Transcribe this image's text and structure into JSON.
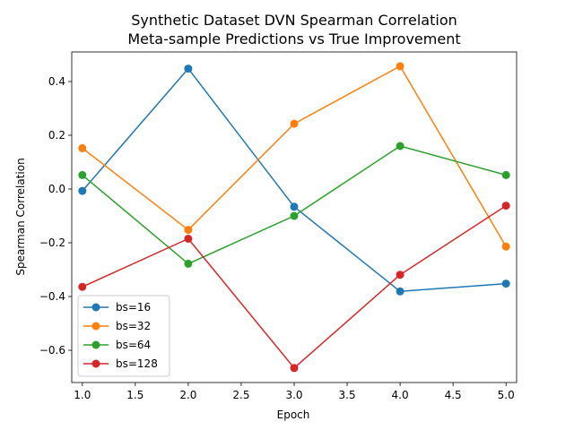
{
  "chart_data": {
    "type": "line",
    "title": "Synthetic Dataset DVN Spearman Correlation",
    "subtitle": "Meta-sample Predictions vs True Improvement",
    "xlabel": "Epoch",
    "ylabel": "Spearman Correlation",
    "xlim": [
      0.9,
      5.1
    ],
    "ylim": [
      -0.72,
      0.51
    ],
    "xticks": [
      1.0,
      1.5,
      2.0,
      2.5,
      3.0,
      3.5,
      4.0,
      4.5,
      5.0
    ],
    "xtick_labels": [
      "1.0",
      "1.5",
      "2.0",
      "2.5",
      "3.0",
      "3.5",
      "4.0",
      "4.5",
      "5.0"
    ],
    "yticks": [
      -0.6,
      -0.4,
      -0.2,
      0.0,
      0.2,
      0.4
    ],
    "ytick_labels": [
      "−0.6",
      "−0.4",
      "−0.2",
      "0.0",
      "0.2",
      "0.4"
    ],
    "grid": false,
    "legend_position": "lower-left",
    "x": [
      1,
      2,
      3,
      4,
      5
    ],
    "series": [
      {
        "name": "bs=16",
        "color": "#1f77b4",
        "values": [
          -0.007,
          0.448,
          -0.066,
          -0.381,
          -0.352
        ]
      },
      {
        "name": "bs=32",
        "color": "#ff7f0e",
        "values": [
          0.152,
          -0.152,
          0.243,
          0.457,
          -0.214
        ]
      },
      {
        "name": "bs=64",
        "color": "#2ca02c",
        "values": [
          0.052,
          -0.278,
          -0.1,
          0.16,
          0.052
        ]
      },
      {
        "name": "bs=128",
        "color": "#d62728",
        "values": [
          -0.364,
          -0.185,
          -0.666,
          -0.319,
          -0.062
        ]
      }
    ]
  }
}
